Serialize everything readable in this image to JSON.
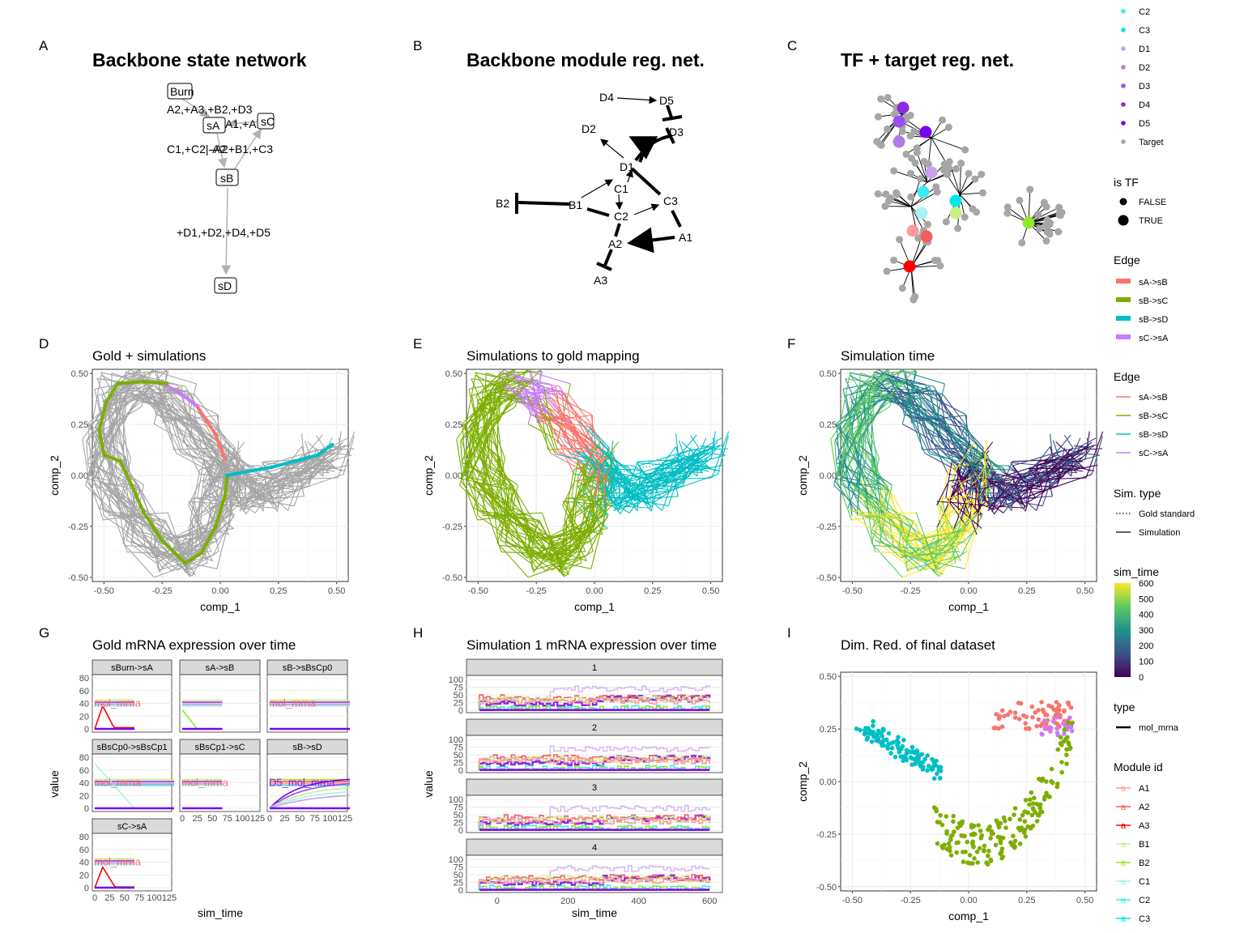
{
  "panel_letters": [
    "A",
    "B",
    "C",
    "D",
    "E",
    "F",
    "G",
    "H",
    "I"
  ],
  "colors": {
    "sA->sB": "#f8766d",
    "sB->sC": "#7cae00",
    "sB->sD": "#00bfc4",
    "sC->sA": "#c77cff",
    "gray": "#a6a6a6",
    "A1": "#ff9a9a",
    "A2": "#f25c5c",
    "A3": "#ff0000",
    "B1": "#c8f08a",
    "B2": "#8fe82a",
    "C1": "#a6f2f2",
    "C2": "#3deaf0",
    "C3": "#00e5ee",
    "D1": "#c7a1f0",
    "D2": "#b07ae8",
    "D3": "#9b4df0",
    "D4": "#8a2be2",
    "D5": "#7a00f0",
    "Target": "#a6a6a6"
  },
  "chart_data": [
    {
      "id": "A",
      "type": "diagram",
      "title": "Backbone state network",
      "nodes": [
        {
          "name": "Burn",
          "label": "Burn"
        },
        {
          "name": "sA",
          "label": "sA"
        },
        {
          "name": "sB",
          "label": "sB"
        },
        {
          "name": "sC",
          "label": "sC"
        },
        {
          "name": "sD",
          "label": "sD"
        }
      ],
      "edge_labels": [
        "A2,+A3,+B2,+D3",
        "A1,+A",
        "C1,+C2|-A2",
        "-A2+B1,+C3",
        "+D1,+D2,+D4,+D5"
      ]
    },
    {
      "id": "B",
      "type": "diagram",
      "title": "Backbone module reg. net.",
      "nodes": [
        "D4",
        "D5",
        "D2",
        "D3",
        "D1",
        "C1",
        "B2",
        "B1",
        "C3",
        "C2",
        "A1",
        "A2",
        "A3"
      ]
    },
    {
      "id": "C",
      "type": "diagram",
      "title": "TF + target reg. net."
    },
    {
      "id": "D",
      "type": "line",
      "title": "Gold + simulations",
      "xlabel": "comp_1",
      "ylabel": "comp_2",
      "xlim": [
        -0.55,
        0.55
      ],
      "ylim": [
        -0.52,
        0.52
      ],
      "xticks": [
        "-0.50",
        "-0.25",
        "0.00",
        "0.25",
        "0.50"
      ],
      "yticks": [
        "-0.50",
        "-0.25",
        "0.00",
        "0.25",
        "0.50"
      ]
    },
    {
      "id": "E",
      "type": "line",
      "title": "Simulations to gold mapping",
      "xlabel": "comp_1",
      "ylabel": "comp_2",
      "xticks": [
        "-0.50",
        "-0.25",
        "0.00",
        "0.25",
        "0.50"
      ],
      "yticks": [
        "-0.50",
        "-0.25",
        "0.00",
        "0.25",
        "0.50"
      ]
    },
    {
      "id": "F",
      "type": "line",
      "title": "Simulation time",
      "xlabel": "comp_1",
      "ylabel": "comp_2",
      "xticks": [
        "-0.50",
        "-0.25",
        "0.00",
        "0.25",
        "0.50"
      ],
      "yticks": [
        "-0.50",
        "-0.25",
        "0.00",
        "0.25",
        "0.50"
      ]
    },
    {
      "id": "G",
      "type": "line",
      "title": "Gold mRNA expression over time",
      "xlabel": "sim_time",
      "ylabel": "value",
      "facets": [
        "sBurn->sA",
        "sA->sB",
        "sB->sBsCp0",
        "sBsCp0->sBsCp1",
        "sBsCp1->sC",
        "sB->sD",
        "sC->sA"
      ],
      "yticks": [
        "0",
        "20",
        "40",
        "60",
        "80"
      ],
      "xticks": [
        "0",
        "25",
        "50",
        "75",
        "100",
        "125"
      ],
      "annotations": [
        "mol_mrna",
        "D5_mol_mrna"
      ]
    },
    {
      "id": "H",
      "type": "line",
      "title": "Simulation 1 mRNA expression over time",
      "xlabel": "sim_time",
      "ylabel": "value",
      "facets": [
        "1",
        "2",
        "3",
        "4"
      ],
      "yticks": [
        "0",
        "25",
        "50",
        "75",
        "100"
      ],
      "xticks": [
        "0",
        "200",
        "400",
        "600"
      ]
    },
    {
      "id": "I",
      "type": "scatter",
      "title": "Dim. Red. of final dataset",
      "xlabel": "comp_1",
      "ylabel": "comp_2",
      "xticks": [
        "-0.50",
        "-0.25",
        "0.00",
        "0.25",
        "0.50"
      ],
      "yticks": [
        "-0.50",
        "-0.25",
        "0.00",
        "0.25",
        "0.50"
      ]
    }
  ],
  "legends": {
    "modules_top": [
      "C2",
      "C3",
      "D1",
      "D2",
      "D3",
      "D4",
      "D5",
      "Target"
    ],
    "is_tf": {
      "title": "is TF",
      "items": [
        "FALSE",
        "TRUE"
      ]
    },
    "edge_c": {
      "title": "Edge",
      "items": [
        "sA->sB",
        "sB->sC",
        "sB->sD",
        "sC->sA"
      ]
    },
    "edge_e": {
      "title": "Edge",
      "items": [
        "sA->sB",
        "sB->sC",
        "sB->sD",
        "sC->sA"
      ]
    },
    "sim_type": {
      "title": "Sim. type",
      "items": [
        "Gold standard",
        "Simulation"
      ]
    },
    "sim_time": {
      "title": "sim_time",
      "ticks": [
        "600",
        "500",
        "400",
        "300",
        "200",
        "100",
        "0"
      ]
    },
    "type": {
      "title": "type",
      "items": [
        "mol_mrna"
      ]
    },
    "module_id": {
      "title": "Module id",
      "items": [
        "A1",
        "A2",
        "A3",
        "B1",
        "B2",
        "C1",
        "C2",
        "C3"
      ]
    }
  }
}
